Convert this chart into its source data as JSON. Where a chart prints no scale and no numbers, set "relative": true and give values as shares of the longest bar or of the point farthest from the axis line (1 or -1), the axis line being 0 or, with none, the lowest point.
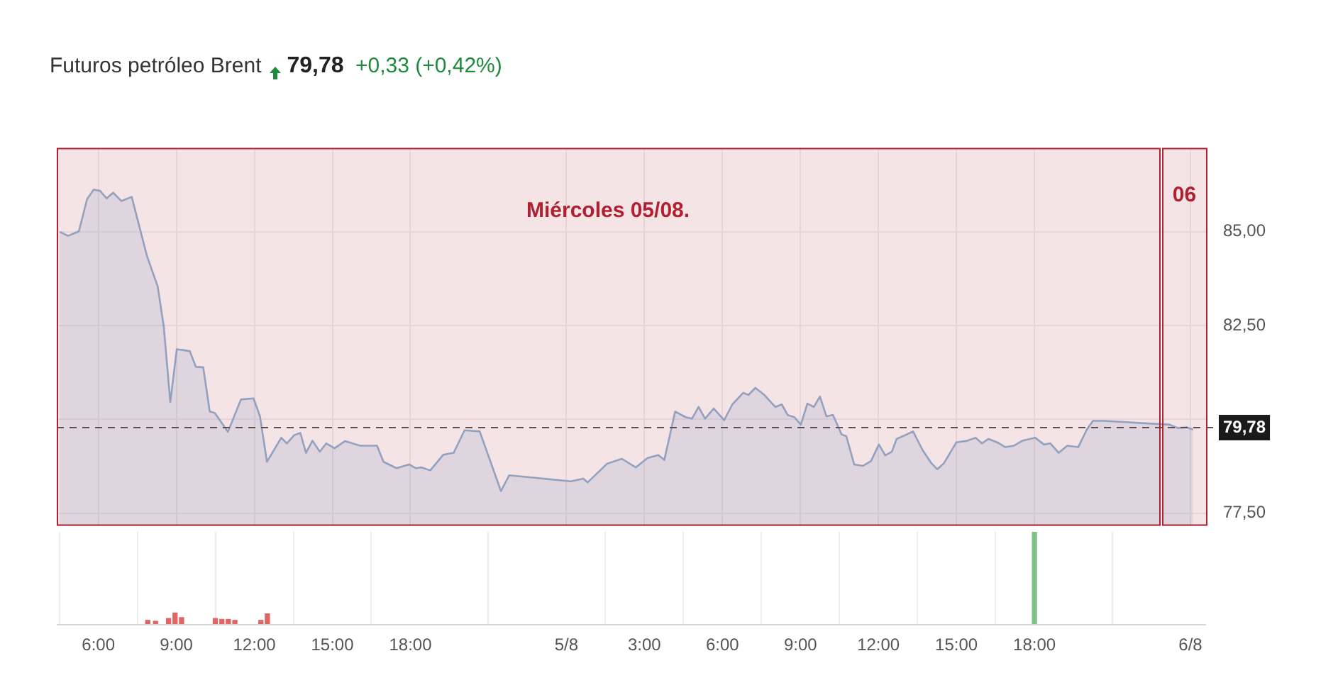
{
  "chart_data": [
    {
      "type": "area",
      "title": "Futuros petróleo Brent",
      "subtitle": "79,78 +0,33 (+0,42%)",
      "bands": [
        {
          "axis": "x",
          "from": "--08-04T04:24",
          "to": "--08-05T22:48",
          "label": "Miércoles 05/08.",
          "color": "#b02030"
        },
        {
          "axis": "x",
          "from": "--08-05T22:56",
          "to": "--08-06T00:36",
          "label": "06",
          "color": "#b02030"
        }
      ],
      "x": [
        "--08-04T04:31",
        "--08-04T04:50",
        "--08-04T05:15",
        "--08-04T05:34",
        "--08-04T05:49",
        "--08-04T06:04",
        "--08-04T06:19",
        "--08-04T06:34",
        "--08-04T06:53",
        "--08-04T07:17",
        "--08-04T07:52",
        "--08-04T08:17",
        "--08-04T08:31",
        "--08-04T08:46",
        "--08-04T09:01",
        "--08-04T09:31",
        "--08-04T09:45",
        "--08-04T10:02",
        "--08-04T10:17",
        "--08-04T10:29",
        "--08-04T10:59",
        "--08-04T11:29",
        "--08-04T11:58",
        "--08-04T12:13",
        "--08-04T12:29",
        "--08-04T13:02",
        "--08-04T13:15",
        "--08-04T13:32",
        "--08-04T13:46",
        "--08-04T13:59",
        "--08-04T14:14",
        "--08-04T14:31",
        "--08-04T14:46",
        "--08-04T15:05",
        "--08-04T15:29",
        "--08-04T16:04",
        "--08-04T16:43",
        "--08-04T16:58",
        "--08-04T17:28",
        "--08-04T17:57",
        "--08-04T18:12",
        "--08-04T18:26",
        "--08-04T18:46",
        "--08-04T19:16",
        "--08-04T19:40",
        "--08-04T20:05",
        "--08-04T20:40",
        "--08-04T21:29",
        "--08-04T21:48",
        "--08-05T00:10",
        "--08-05T00:39",
        "--08-05T00:49",
        "--08-05T01:34",
        "--08-05T02:08",
        "--08-05T02:40",
        "--08-05T03:07",
        "--08-05T03:32",
        "--08-05T03:46",
        "--08-05T04:11",
        "--08-05T04:35",
        "--08-05T04:50",
        "--08-05T05:05",
        "--08-05T05:20",
        "--08-05T05:40",
        "--08-05T06:04",
        "--08-05T06:23",
        "--08-05T06:48",
        "--08-05T07:00",
        "--08-05T07:16",
        "--08-05T07:37",
        "--08-05T08:02",
        "--08-05T08:17",
        "--08-05T08:31",
        "--08-05T08:46",
        "--08-05T09:01",
        "--08-05T09:16",
        "--08-05T09:31",
        "--08-05T09:45",
        "--08-05T10:00",
        "--08-05T10:15",
        "--08-05T10:35",
        "--08-05T10:46",
        "--08-05T11:04",
        "--08-05T11:24",
        "--08-05T11:43",
        "--08-05T12:01",
        "--08-05T12:16",
        "--08-05T12:31",
        "--08-05T12:42",
        "--08-05T13:02",
        "--08-05T13:20",
        "--08-05T13:41",
        "--08-05T14:01",
        "--08-05T14:16",
        "--08-05T14:31",
        "--08-05T15:00",
        "--08-05T15:25",
        "--08-05T15:44",
        "--08-05T15:59",
        "--08-05T16:14",
        "--08-05T16:34",
        "--08-05T16:53",
        "--08-05T17:13",
        "--08-05T17:32",
        "--08-05T18:02",
        "--08-05T18:22",
        "--08-05T18:37",
        "--08-05T18:56",
        "--08-05T19:16",
        "--08-05T19:41",
        "--08-05T20:01",
        "--08-05T20:15",
        "--08-05T20:40",
        "--08-05T23:12",
        "--08-05T23:31",
        "--08-05T23:51",
        "--08-06T00:06"
      ],
      "series": [
        {
          "color": "#8fb3d4",
          "values": [
            85.0,
            84.89,
            85.01,
            85.87,
            86.12,
            86.09,
            85.89,
            86.04,
            85.82,
            85.93,
            84.36,
            83.54,
            82.47,
            80.46,
            81.87,
            81.82,
            81.4,
            81.39,
            80.21,
            80.17,
            79.67,
            80.53,
            80.56,
            80.08,
            78.87,
            79.51,
            79.36,
            79.58,
            79.64,
            79.11,
            79.43,
            79.14,
            79.36,
            79.23,
            79.42,
            79.3,
            79.3,
            78.87,
            78.7,
            78.8,
            78.7,
            78.72,
            78.64,
            79.06,
            79.11,
            79.71,
            79.68,
            78.09,
            78.51,
            78.35,
            78.42,
            78.32,
            78.82,
            78.95,
            78.72,
            78.97,
            79.05,
            78.92,
            80.21,
            80.06,
            80.02,
            80.33,
            80.02,
            80.29,
            79.98,
            80.4,
            80.71,
            80.65,
            80.84,
            80.65,
            80.33,
            80.4,
            80.11,
            80.06,
            79.86,
            80.42,
            80.33,
            80.61,
            80.08,
            80.12,
            79.6,
            79.55,
            78.8,
            78.76,
            78.89,
            79.33,
            79.04,
            79.14,
            79.48,
            79.58,
            79.68,
            79.2,
            78.85,
            78.67,
            78.83,
            79.39,
            79.43,
            79.51,
            79.36,
            79.48,
            79.39,
            79.26,
            79.3,
            79.43,
            79.51,
            79.33,
            79.36,
            79.11,
            79.3,
            79.26,
            79.73,
            79.96,
            79.96,
            79.86,
            79.77,
            79.79,
            79.73
          ]
        }
      ],
      "xlim": [
        "--08-04T04:24",
        "--08-06T00:36"
      ],
      "xticks": [
        {
          "value": "--08-04T06:00",
          "label": null
        },
        {
          "value": "--08-04T09:00",
          "label": null
        },
        {
          "value": "--08-04T12:00",
          "label": null
        },
        {
          "value": "--08-04T15:00",
          "label": null
        },
        {
          "value": "--08-04T18:00",
          "label": null
        },
        {
          "value": "--08-05T00:00",
          "label": null
        },
        {
          "value": "--08-05T03:00",
          "label": null
        },
        {
          "value": "--08-05T06:00",
          "label": null
        },
        {
          "value": "--08-05T09:00",
          "label": null
        },
        {
          "value": "--08-05T12:00",
          "label": null
        },
        {
          "value": "--08-05T15:00",
          "label": null
        },
        {
          "value": "--08-05T18:00",
          "label": null
        },
        {
          "value": "--08-06T00:00",
          "label": null
        }
      ],
      "ylim": [
        77.2,
        87.2
      ],
      "yticks": [
        {
          "value": 77.5,
          "label": "77,50"
        },
        {
          "value": 80,
          "label": null
        },
        {
          "value": 82.5,
          "label": "82,50"
        },
        {
          "value": 85,
          "label": "85,00"
        }
      ],
      "ref_lines": [
        {
          "axis": "y",
          "value": 79.78,
          "label": "79,78",
          "line_style": "dashed"
        }
      ],
      "grid": true,
      "legend": false,
      "tick_labels": "y"
    },
    {
      "type": "bar",
      "relative": true,
      "x": [
        "--08-04T07:54",
        "--08-04T08:12",
        "--08-04T08:42",
        "--08-04T08:57",
        "--08-04T09:12",
        "--08-04T10:30",
        "--08-04T10:45",
        "--08-04T11:00",
        "--08-04T11:15",
        "--08-04T12:15",
        "--08-04T12:30",
        "--08-05T18:00"
      ],
      "values": [
        0.04,
        0.03,
        0.06,
        0.12,
        0.07,
        0.06,
        0.05,
        0.05,
        0.04,
        0.04,
        0.11,
        1
      ],
      "colors": [
        "#e06666",
        "#e06666",
        "#e06666",
        "#e06666",
        "#e06666",
        "#e06666",
        "#e06666",
        "#e06666",
        "#e06666",
        "#e06666",
        "#e06666",
        "#7dc383"
      ],
      "xlim": [
        "--08-04T04:24",
        "--08-06T00:36"
      ],
      "xticks": [
        {
          "value": "--08-04T06:00",
          "label": "6:00"
        },
        {
          "value": "--08-04T09:00",
          "label": "9:00"
        },
        {
          "value": "--08-04T12:00",
          "label": "12:00"
        },
        {
          "value": "--08-04T15:00",
          "label": "15:00"
        },
        {
          "value": "--08-04T18:00",
          "label": "18:00"
        },
        {
          "value": "--08-05T00:00",
          "label": "5/8"
        },
        {
          "value": "--08-05T03:00",
          "label": "3:00"
        },
        {
          "value": "--08-05T06:00",
          "label": "6:00"
        },
        {
          "value": "--08-05T09:00",
          "label": "9:00"
        },
        {
          "value": "--08-05T12:00",
          "label": "12:00"
        },
        {
          "value": "--08-05T15:00",
          "label": "15:00"
        },
        {
          "value": "--08-05T18:00",
          "label": "18:00"
        },
        {
          "value": "--08-06T00:00",
          "label": "6/8"
        }
      ],
      "grid": "x",
      "legend": false,
      "tick_labels": "x"
    }
  ]
}
